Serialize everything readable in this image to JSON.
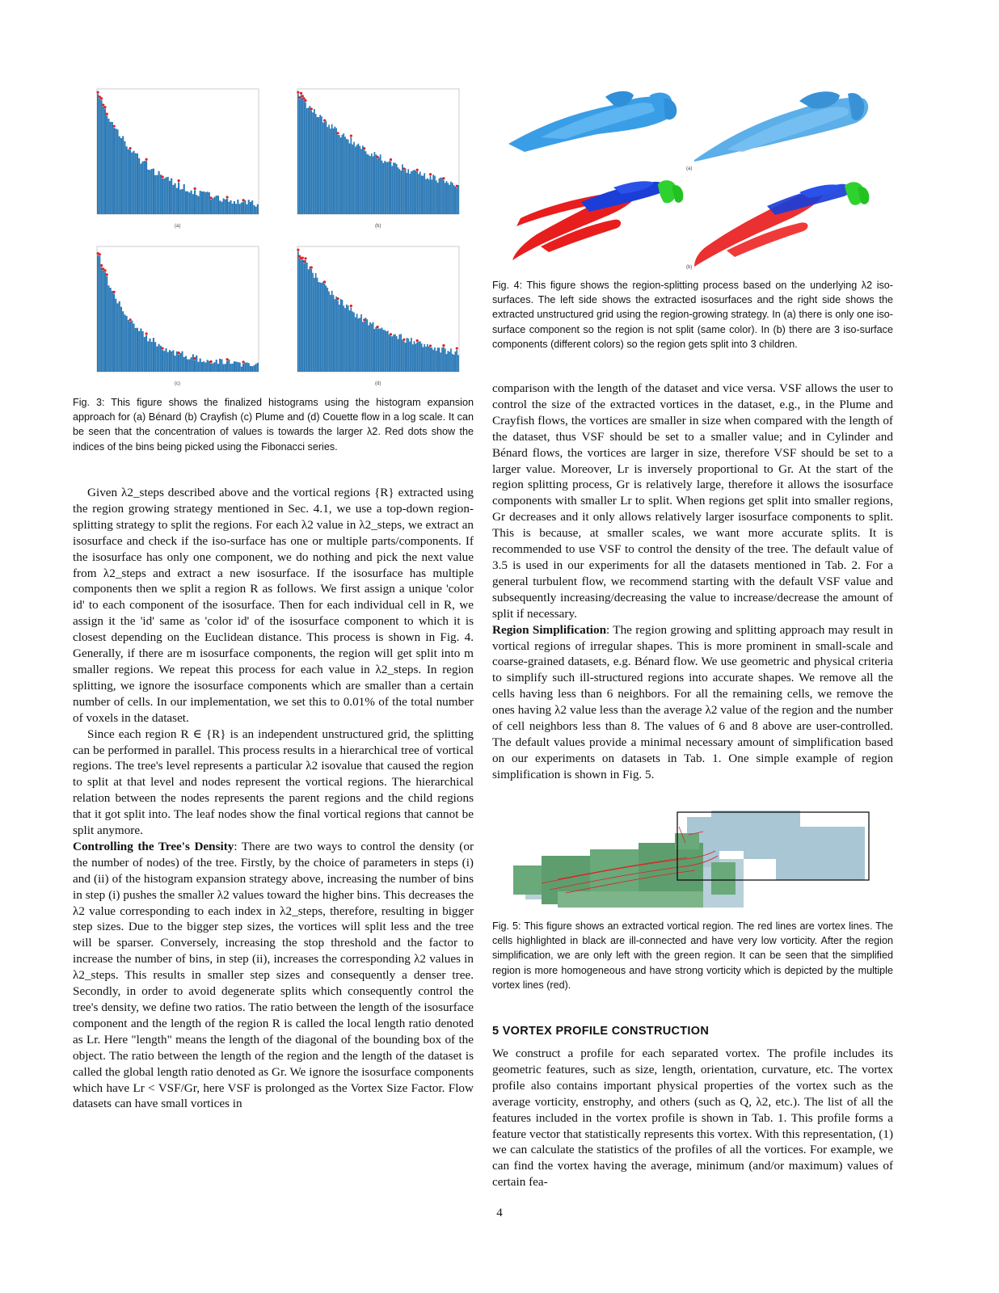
{
  "figure3": {
    "caption": "Fig. 3: This figure shows the finalized histograms using the histogram expansion approach for (a) Bénard (b) Crayfish (c) Plume and (d) Couette flow in a log scale. It can be seen that the concentration of values is towards the larger λ2. Red dots show the indices of the bins being picked using the Fibonacci series.",
    "panels": [
      {
        "label": "(a)"
      },
      {
        "label": "(b)"
      },
      {
        "label": "(c)"
      },
      {
        "label": "(d)"
      }
    ],
    "colors": {
      "bar": "#2b79b6",
      "dot": "#e02020"
    }
  },
  "figure4": {
    "caption": "Fig. 4: This figure shows the region-splitting process based on the underlying λ2 iso-surfaces. The left side shows the extracted isosurfaces and the right side shows the extracted unstructured grid using the region-growing strategy. In (a) there is only one iso-surface component so the region is not split (same color). In (b) there are 3 iso-surface components (different colors) so the region gets split into 3 children.",
    "labels": [
      "(a)",
      "(b)"
    ],
    "colors": {
      "single": "#3a9ee6",
      "red": "#e81e1e",
      "blue": "#1b3ed8",
      "green": "#2ed22e"
    }
  },
  "figure5": {
    "caption": "Fig. 5: This figure shows an extracted vortical region. The red lines are vortex lines. The cells highlighted in black are ill-connected and have very low vorticity. After the region simplification, we are only left with the green region. It can be seen that the simplified region is more homogeneous and have strong vorticity which is depicted by the multiple vortex lines (red).",
    "colors": {
      "region": "#a9c6d4",
      "green": "#5e9e6e",
      "lines": "#e02020"
    }
  },
  "left_col": {
    "para1": "Given λ2_steps described above and the vortical regions {R} extracted using the region growing strategy mentioned in Sec. 4.1, we use a top-down region-splitting strategy to split the regions. For each λ2 value in λ2_steps, we extract an isosurface and check if the iso-surface has one or multiple parts/components. If the isosurface has only one component, we do nothing and pick the next value from λ2_steps and extract a new isosurface. If the isosurface has multiple components then we split a region R as follows. We first assign a unique 'color id' to each component of the isosurface. Then for each individual cell in R, we assign it the 'id' same as 'color id' of the isosurface component to which it is closest depending on the Euclidean distance. This process is shown in Fig. 4. Generally, if there are m isosurface components, the region will get split into m smaller regions. We repeat this process for each value in λ2_steps. In region splitting, we ignore the isosurface components which are smaller than a certain number of cells. In our implementation, we set this to 0.01% of the total number of voxels in the dataset.",
    "para2": "Since each region R ∈ {R} is an independent unstructured grid, the splitting can be performed in parallel. This process results in a hierarchical tree of vortical regions. The tree's level represents a particular λ2 isovalue that caused the region to split at that level and nodes represent the vortical regions. The hierarchical relation between the nodes represents the parent regions and the child regions that it got split into. The leaf nodes show the final vortical regions that cannot be split anymore.",
    "para3_head": "Controlling the Tree's Density",
    "para3": ": There are two ways to control the density (or the number of nodes) of the tree. Firstly, by the choice of parameters in steps (i) and (ii) of the histogram expansion strategy above, increasing the number of bins in step (i) pushes the smaller λ2 values toward the higher bins. This decreases the λ2 value corresponding to each index in λ2_steps, therefore, resulting in bigger step sizes. Due to the bigger step sizes, the vortices will split less and the tree will be sparser. Conversely, increasing the stop threshold and the factor to increase the number of bins, in step (ii), increases the corresponding λ2 values in λ2_steps. This results in smaller step sizes and consequently a denser tree. Secondly, in order to avoid degenerate splits which consequently control the tree's density, we define two ratios. The ratio between the length of the isosurface component and the length of the region R is called the local length ratio denoted as Lr. Here \"length\" means the length of the diagonal of the bounding box of the object. The ratio between the length of the region and the length of the dataset is called the global length ratio denoted as Gr. We ignore the isosurface components which have Lr < VSF/Gr, here VSF is prolonged as the Vortex Size Factor. Flow datasets can have small vortices in"
  },
  "right_col": {
    "para1": "comparison with the length of the dataset and vice versa. VSF allows the user to control the size of the extracted vortices in the dataset, e.g., in the Plume and Crayfish flows, the vortices are smaller in size when compared with the length of the dataset, thus VSF should be set to a smaller value; and in Cylinder and Bénard flows, the vortices are larger in size, therefore VSF should be set to a larger value. Moreover, Lr is inversely proportional to Gr. At the start of the region splitting process, Gr is relatively large, therefore it allows the isosurface components with smaller Lr to split. When regions get split into smaller regions, Gr decreases and it only allows relatively larger isosurface components to split. This is because, at smaller scales, we want more accurate splits. It is recommended to use VSF to control the density of the tree. The default value of 3.5 is used in our experiments for all the datasets mentioned in Tab. 2. For a general turbulent flow, we recommend starting with the default VSF value and subsequently increasing/decreasing the value to increase/decrease the amount of split if necessary.",
    "para2_head": "Region Simplification",
    "para2": ": The region growing and splitting approach may result in vortical regions of irregular shapes. This is more prominent in small-scale and coarse-grained datasets, e.g. Bénard flow. We use geometric and physical criteria to simplify such ill-structured regions into accurate shapes. We remove all the cells having less than 6 neighbors. For all the remaining cells, we remove the ones having λ2 value less than the average λ2 value of the region and the number of cell neighbors less than 8. The values of 6 and 8 above are user-controlled. The default values provide a minimal necessary amount of simplification based on our experiments on datasets in Tab. 1. One simple example of region simplification is shown in Fig. 5.",
    "section_heading": "5   VORTEX PROFILE CONSTRUCTION",
    "para3": "We construct a profile for each separated vortex. The profile includes its geometric features, such as size, length, orientation, curvature, etc. The vortex profile also contains important physical properties of the vortex such as the average vorticity, enstrophy, and others (such as Q, λ2, etc.). The list of all the features included in the vortex profile is shown in Tab. 1. This profile forms a feature vector that statistically represents this vortex. With this representation, (1) we can calculate the statistics of the profiles of all the vortices. For example, we can find the vortex having the average, minimum (and/or maximum) values of certain fea-"
  },
  "page_number": "4"
}
